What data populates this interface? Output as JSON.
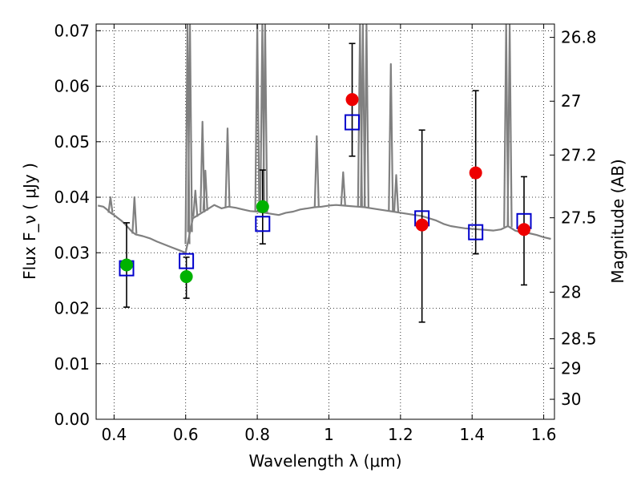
{
  "chart_data": {
    "type": "scatter",
    "xlabel": "Wavelength  λ (μm)",
    "ylabel": "Flux  F_ν  ( μJy )",
    "ylabel_right": "Magnitude (AB)",
    "xlim": [
      0.35,
      1.63
    ],
    "ylim": [
      0.0,
      0.0712
    ],
    "grid": true,
    "x_ticks": [
      0.4,
      0.6,
      0.8,
      1.0,
      1.2,
      1.4,
      1.6
    ],
    "x_tick_labels": [
      "0.4",
      "0.6",
      "0.8",
      "1",
      "1.2",
      "1.4",
      "1.6"
    ],
    "y_ticks": [
      0.0,
      0.01,
      0.02,
      0.03,
      0.04,
      0.05,
      0.06,
      0.07
    ],
    "y_tick_labels": [
      "0.00",
      "0.01",
      "0.02",
      "0.03",
      "0.04",
      "0.05",
      "0.06",
      "0.07"
    ],
    "right_ticks": [
      {
        "flux": 0.0688,
        "label": "26.8"
      },
      {
        "flux": 0.0573,
        "label": "27"
      },
      {
        "flux": 0.0476,
        "label": "27.2"
      },
      {
        "flux": 0.0363,
        "label": "27.5"
      },
      {
        "flux": 0.0229,
        "label": "28"
      },
      {
        "flux": 0.0145,
        "label": "28.5"
      },
      {
        "flux": 0.0092,
        "label": "29"
      },
      {
        "flux": 0.0036,
        "label": "30"
      }
    ],
    "series": [
      {
        "kind": "line",
        "color": "#808080",
        "x": [
          0.355,
          0.37,
          0.38,
          0.39,
          0.4,
          0.41,
          0.42,
          0.43,
          0.44,
          0.45,
          0.46,
          0.48,
          0.5,
          0.52,
          0.54,
          0.56,
          0.58,
          0.6,
          0.62,
          0.64,
          0.66,
          0.68,
          0.7,
          0.72,
          0.74,
          0.76,
          0.78,
          0.8,
          0.82,
          0.84,
          0.86,
          0.88,
          0.9,
          0.92,
          0.94,
          0.96,
          0.98,
          1.0,
          1.02,
          1.04,
          1.06,
          1.08,
          1.1,
          1.12,
          1.14,
          1.16,
          1.18,
          1.2,
          1.22,
          1.24,
          1.26,
          1.28,
          1.3,
          1.32,
          1.34,
          1.36,
          1.38,
          1.4,
          1.42,
          1.44,
          1.46,
          1.48,
          1.5,
          1.52,
          1.54,
          1.56,
          1.58,
          1.6,
          1.62
        ],
        "y": [
          0.0385,
          0.0383,
          0.0378,
          0.0372,
          0.0368,
          0.0363,
          0.0358,
          0.0352,
          0.0345,
          0.0338,
          0.0333,
          0.033,
          0.0326,
          0.032,
          0.0315,
          0.031,
          0.0305,
          0.03,
          0.0362,
          0.037,
          0.0378,
          0.0386,
          0.038,
          0.0383,
          0.0381,
          0.0378,
          0.0375,
          0.0374,
          0.0372,
          0.037,
          0.0368,
          0.0372,
          0.0374,
          0.0378,
          0.038,
          0.0382,
          0.0383,
          0.0385,
          0.0386,
          0.0385,
          0.0384,
          0.0383,
          0.0382,
          0.038,
          0.0378,
          0.0376,
          0.0374,
          0.0372,
          0.037,
          0.0368,
          0.0366,
          0.0362,
          0.0358,
          0.0352,
          0.0348,
          0.0346,
          0.0344,
          0.0343,
          0.0342,
          0.0341,
          0.034,
          0.0342,
          0.0348,
          0.034,
          0.0336,
          0.0335,
          0.0332,
          0.0328,
          0.0325
        ],
        "spikes": [
          {
            "x": 0.39,
            "peak": 0.04
          },
          {
            "x": 0.457,
            "peak": 0.04
          },
          {
            "x": 0.605,
            "peak": 0.071
          },
          {
            "x": 0.612,
            "peak": 0.071
          },
          {
            "x": 0.627,
            "peak": 0.0412
          },
          {
            "x": 0.647,
            "peak": 0.0536
          },
          {
            "x": 0.655,
            "peak": 0.0448
          },
          {
            "x": 0.717,
            "peak": 0.0524
          },
          {
            "x": 0.8,
            "peak": 0.071
          },
          {
            "x": 0.814,
            "peak": 0.071
          },
          {
            "x": 0.822,
            "peak": 0.071
          },
          {
            "x": 0.966,
            "peak": 0.051
          },
          {
            "x": 1.04,
            "peak": 0.0445
          },
          {
            "x": 1.087,
            "peak": 0.071
          },
          {
            "x": 1.095,
            "peak": 0.071
          },
          {
            "x": 1.105,
            "peak": 0.071
          },
          {
            "x": 1.173,
            "peak": 0.064
          },
          {
            "x": 1.188,
            "peak": 0.044
          },
          {
            "x": 1.495,
            "peak": 0.071
          },
          {
            "x": 1.505,
            "peak": 0.071
          }
        ]
      },
      {
        "kind": "markers",
        "marker": "open-square",
        "color": "#0000cc",
        "x": [
          0.435,
          0.602,
          0.815,
          1.065,
          1.26,
          1.41,
          1.545
        ],
        "y": [
          0.0272,
          0.0285,
          0.0352,
          0.0535,
          0.0362,
          0.0337,
          0.0357
        ]
      },
      {
        "kind": "markers",
        "marker": "filled-circle",
        "color": "#00b200",
        "x": [
          0.435,
          0.602,
          0.815
        ],
        "y": [
          0.0278,
          0.0257,
          0.0383
        ]
      },
      {
        "kind": "markers",
        "marker": "filled-circle",
        "color": "#ee0000",
        "x": [
          1.065,
          1.26,
          1.41,
          1.545
        ],
        "y": [
          0.0576,
          0.035,
          0.0444,
          0.0342
        ]
      }
    ],
    "error_bars": {
      "color": "#000000",
      "items": [
        {
          "x": 0.435,
          "lo": 0.0202,
          "hi": 0.0354
        },
        {
          "x": 0.602,
          "lo": 0.0218,
          "hi": 0.0292
        },
        {
          "x": 0.815,
          "lo": 0.0316,
          "hi": 0.0449
        },
        {
          "x": 1.065,
          "lo": 0.0474,
          "hi": 0.0677
        },
        {
          "x": 1.26,
          "lo": 0.0175,
          "hi": 0.0521
        },
        {
          "x": 1.41,
          "lo": 0.0298,
          "hi": 0.0592
        },
        {
          "x": 1.545,
          "lo": 0.0242,
          "hi": 0.0437
        }
      ]
    }
  }
}
